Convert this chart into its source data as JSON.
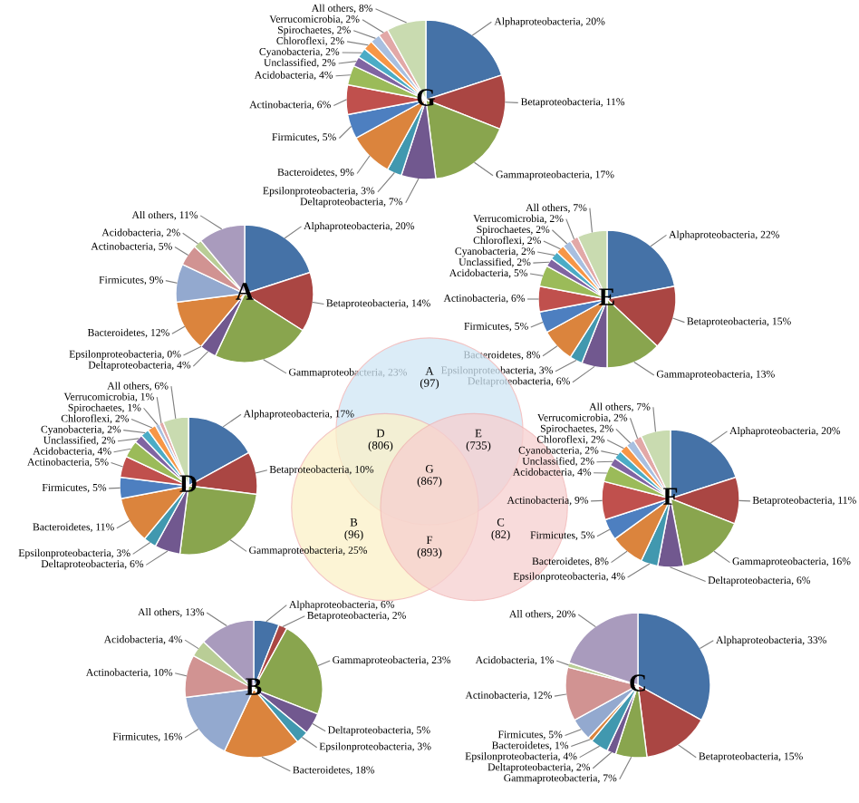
{
  "chart_data": [
    {
      "type": "pie",
      "title": "G",
      "categories": [
        "Alphaproteobacteria",
        "Betaproteobacteria",
        "Gammaproteobacteria",
        "Deltaproteobacteria",
        "Epsilonproteobacteria",
        "Bacteroidetes",
        "Firmicutes",
        "Actinobacteria",
        "Acidobacteria",
        "Unclassified",
        "Cyanobacteria",
        "Chloroflexi",
        "Spirochaetes",
        "Verrucomicrobia",
        "All others"
      ],
      "values": [
        20,
        11,
        17,
        7,
        3,
        9,
        5,
        6,
        4,
        2,
        2,
        2,
        2,
        2,
        8
      ],
      "value_labels": [
        "20%",
        "11%",
        "17%",
        "7%",
        "3%",
        "9%",
        "5%",
        "6%",
        "4%",
        "2%",
        "2%",
        "2%",
        "2%",
        "2%",
        "8%"
      ],
      "colors": [
        "#4572a7",
        "#aa4643",
        "#89a54e",
        "#71588f",
        "#4198af",
        "#db843d",
        "#4d7fc0",
        "#c0504d",
        "#9bbb59",
        "#8064a2",
        "#4bacc6",
        "#f79646",
        "#a8bfe0",
        "#e2a8a7",
        "#c9dbb0"
      ]
    },
    {
      "type": "pie",
      "title": "A",
      "categories": [
        "Alphaproteobacteria",
        "Betaproteobacteria",
        "Gammaproteobacteria",
        "Deltaproteobacteria",
        "Epsilonproteobacteria",
        "Bacteroidetes",
        "Firmicutes",
        "Actinobacteria",
        "Acidobacteria",
        "All others"
      ],
      "values": [
        20,
        14,
        23,
        4,
        0,
        12,
        9,
        5,
        2,
        11
      ],
      "value_labels": [
        "20%",
        "14%",
        "23%",
        "4%",
        "0%",
        "12%",
        "9%",
        "5%",
        "2%",
        "11%"
      ],
      "colors": [
        "#4572a7",
        "#aa4643",
        "#89a54e",
        "#71588f",
        "#4198af",
        "#db843d",
        "#93a9cf",
        "#d19392",
        "#b9cd96",
        "#a99bbd"
      ]
    },
    {
      "type": "pie",
      "title": "E",
      "categories": [
        "Alphaproteobacteria",
        "Betaproteobacteria",
        "Gammaproteobacteria",
        "Deltaproteobacteria",
        "Epsilonproteobacteria",
        "Bacteroidetes",
        "Firmicutes",
        "Actinobacteria",
        "Acidobacteria",
        "Unclassified",
        "Cyanobacteria",
        "Chloroflexi",
        "Spirochaetes",
        "Verrucomicrobia",
        "All others"
      ],
      "values": [
        22,
        15,
        13,
        6,
        3,
        8,
        5,
        6,
        5,
        2,
        2,
        2,
        2,
        2,
        7
      ],
      "value_labels": [
        "22%",
        "15%",
        "13%",
        "6%",
        "3%",
        "8%",
        "5%",
        "6%",
        "5%",
        "2%",
        "2%",
        "2%",
        "2%",
        "2%",
        "7%"
      ],
      "colors": [
        "#4572a7",
        "#aa4643",
        "#89a54e",
        "#71588f",
        "#4198af",
        "#db843d",
        "#4d7fc0",
        "#c0504d",
        "#9bbb59",
        "#8064a2",
        "#4bacc6",
        "#f79646",
        "#a8bfe0",
        "#e2a8a7",
        "#c9dbb0"
      ]
    },
    {
      "type": "other",
      "categories": [
        "A",
        "B",
        "C",
        "D",
        "E",
        "F",
        "G"
      ],
      "values": [
        97,
        96,
        82,
        806,
        735,
        893,
        867
      ],
      "value_labels": [
        "(97)",
        "(96)",
        "(82)",
        "(806)",
        "(735)",
        "(893)",
        "(867)"
      ]
    },
    {
      "type": "pie",
      "title": "D",
      "categories": [
        "Alphaproteobacteria",
        "Betaproteobacteria",
        "Gammaproteobacteria",
        "Deltaproteobacteria",
        "Epsilonproteobacteria",
        "Bacteroidetes",
        "Firmicutes",
        "Actinobacteria",
        "Acidobacteria",
        "Unclassified",
        "Cyanobacteria",
        "Chloroflexi",
        "Spirochaetes",
        "Verrucomicrobia",
        "All others"
      ],
      "values": [
        17,
        10,
        25,
        6,
        3,
        11,
        5,
        5,
        4,
        2,
        2,
        2,
        1,
        1,
        6
      ],
      "value_labels": [
        "17%",
        "10%",
        "25%",
        "6%",
        "3%",
        "11%",
        "5%",
        "5%",
        "4%",
        "2%",
        "2%",
        "2%",
        "1%",
        "1%",
        "6%"
      ],
      "colors": [
        "#4572a7",
        "#aa4643",
        "#89a54e",
        "#71588f",
        "#4198af",
        "#db843d",
        "#4d7fc0",
        "#c0504d",
        "#9bbb59",
        "#8064a2",
        "#4bacc6",
        "#f79646",
        "#a8bfe0",
        "#e2a8a7",
        "#c9dbb0"
      ]
    },
    {
      "type": "pie",
      "title": "F",
      "categories": [
        "Alphaproteobacteria",
        "Betaproteobacteria",
        "Gammaproteobacteria",
        "Deltaproteobacteria",
        "Epsilonproteobacteria",
        "Bacteroidetes",
        "Firmicutes",
        "Actinobacteria",
        "Acidobacteria",
        "Unclassified",
        "Cyanobacteria",
        "Chloroflexi",
        "Spirochaetes",
        "Verrucomicrobia",
        "All others"
      ],
      "values": [
        20,
        11,
        16,
        6,
        4,
        8,
        5,
        9,
        4,
        2,
        2,
        2,
        2,
        2,
        7
      ],
      "value_labels": [
        "20%",
        "11%",
        "16%",
        "6%",
        "4%",
        "8%",
        "5%",
        "9%",
        "4%",
        "2%",
        "2%",
        "2%",
        "2%",
        "2%",
        "7%"
      ],
      "colors": [
        "#4572a7",
        "#aa4643",
        "#89a54e",
        "#71588f",
        "#4198af",
        "#db843d",
        "#4d7fc0",
        "#c0504d",
        "#9bbb59",
        "#8064a2",
        "#4bacc6",
        "#f79646",
        "#a8bfe0",
        "#e2a8a7",
        "#c9dbb0"
      ]
    },
    {
      "type": "pie",
      "title": "B",
      "categories": [
        "Alphaproteobacteria",
        "Betaproteobacteria",
        "Gammaproteobacteria",
        "Deltaproteobacteria",
        "Epsilonproteobacteria",
        "Bacteroidetes",
        "Firmicutes",
        "Actinobacteria",
        "Acidobacteria",
        "All others"
      ],
      "values": [
        6,
        2,
        23,
        5,
        3,
        18,
        16,
        10,
        4,
        13
      ],
      "value_labels": [
        "6%",
        "2%",
        "23%",
        "5%",
        "3%",
        "18%",
        "16%",
        "10%",
        "4%",
        "13%"
      ],
      "colors": [
        "#4572a7",
        "#aa4643",
        "#89a54e",
        "#71588f",
        "#4198af",
        "#db843d",
        "#93a9cf",
        "#d19392",
        "#b9cd96",
        "#a99bbd"
      ]
    },
    {
      "type": "pie",
      "title": "C",
      "categories": [
        "Alphaproteobacteria",
        "Betaproteobacteria",
        "Gammaproteobacteria",
        "Deltaproteobacteria",
        "Epsilonproteobacteria",
        "Bacteroidetes",
        "Firmicutes",
        "Actinobacteria",
        "Acidobacteria",
        "All others"
      ],
      "values": [
        33,
        15,
        7,
        2,
        4,
        1,
        5,
        12,
        1,
        20
      ],
      "value_labels": [
        "33%",
        "15%",
        "7%",
        "2%",
        "4%",
        "1%",
        "5%",
        "12%",
        "1%",
        "20%"
      ],
      "colors": [
        "#4572a7",
        "#aa4643",
        "#89a54e",
        "#71588f",
        "#4198af",
        "#db843d",
        "#93a9cf",
        "#d19392",
        "#b9cd96",
        "#a99bbd"
      ]
    }
  ]
}
